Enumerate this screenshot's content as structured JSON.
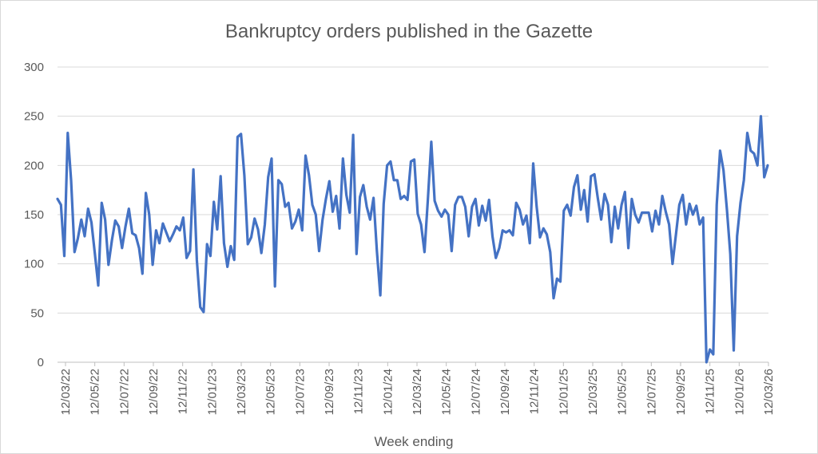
{
  "chart_data": {
    "type": "line",
    "title": "Bankruptcy orders published in the Gazette",
    "xlabel": "Week ending",
    "ylabel": "",
    "ylim": [
      0,
      300
    ],
    "yticks": [
      "0",
      "50",
      "100",
      "150",
      "200",
      "250",
      "300"
    ],
    "xticks": [
      "12/03/22",
      "12/05/22",
      "12/07/22",
      "12/09/22",
      "12/11/22",
      "12/01/23",
      "12/03/23",
      "12/05/23",
      "12/07/23",
      "12/09/23",
      "12/11/23",
      "12/01/24",
      "12/03/24",
      "12/05/24",
      "12/07/24",
      "12/09/24",
      "12/11/24",
      "12/01/25",
      "12/03/25",
      "12/05/25",
      "12/07/25",
      "12/09/25",
      "12/11/25",
      "12/01/26",
      "12/03/26"
    ],
    "grid": true,
    "legend": "none",
    "line_color": "#4472C4",
    "series": [
      {
        "values": [
          166,
          160,
          108,
          233,
          185,
          112,
          126,
          145,
          128,
          156,
          142,
          110,
          78,
          162,
          145,
          99,
          124,
          144,
          138,
          116,
          138,
          156,
          131,
          129,
          116,
          90,
          172,
          150,
          99,
          134,
          121,
          141,
          132,
          123,
          130,
          138,
          134,
          147,
          106,
          113,
          196,
          104,
          56,
          51,
          120,
          108,
          163,
          135,
          189,
          121,
          97,
          118,
          104,
          229,
          232,
          190,
          120,
          127,
          146,
          135,
          111,
          140,
          188,
          207,
          77,
          185,
          181,
          158,
          162,
          136,
          143,
          155,
          134,
          210,
          190,
          160,
          150,
          113,
          145,
          166,
          184,
          153,
          169,
          136,
          207,
          170,
          152,
          231,
          110,
          168,
          180,
          158,
          145,
          167,
          113,
          68,
          161,
          200,
          204,
          185,
          185,
          166,
          169,
          165,
          204,
          206,
          151,
          140,
          112,
          165,
          224,
          164,
          154,
          148,
          155,
          150,
          113,
          160,
          168,
          168,
          158,
          128,
          158,
          166,
          139,
          159,
          144,
          165,
          128,
          106,
          116,
          134,
          132,
          134,
          129,
          162,
          155,
          140,
          149,
          121,
          202,
          158,
          127,
          136,
          130,
          112,
          65,
          85,
          82,
          154,
          160,
          149,
          178,
          190,
          155,
          175,
          143,
          189,
          191,
          167,
          145,
          171,
          160,
          122,
          158,
          136,
          160,
          173,
          116,
          166,
          150,
          142,
          152,
          152,
          152,
          133,
          154,
          140,
          169,
          153,
          140,
          100,
          130,
          160,
          170,
          140,
          161,
          150,
          159,
          140,
          147,
          0,
          13,
          8,
          160,
          215,
          195,
          155,
          110,
          12,
          128,
          162,
          185,
          233,
          215,
          212,
          200,
          250,
          188,
          200
        ]
      }
    ]
  }
}
